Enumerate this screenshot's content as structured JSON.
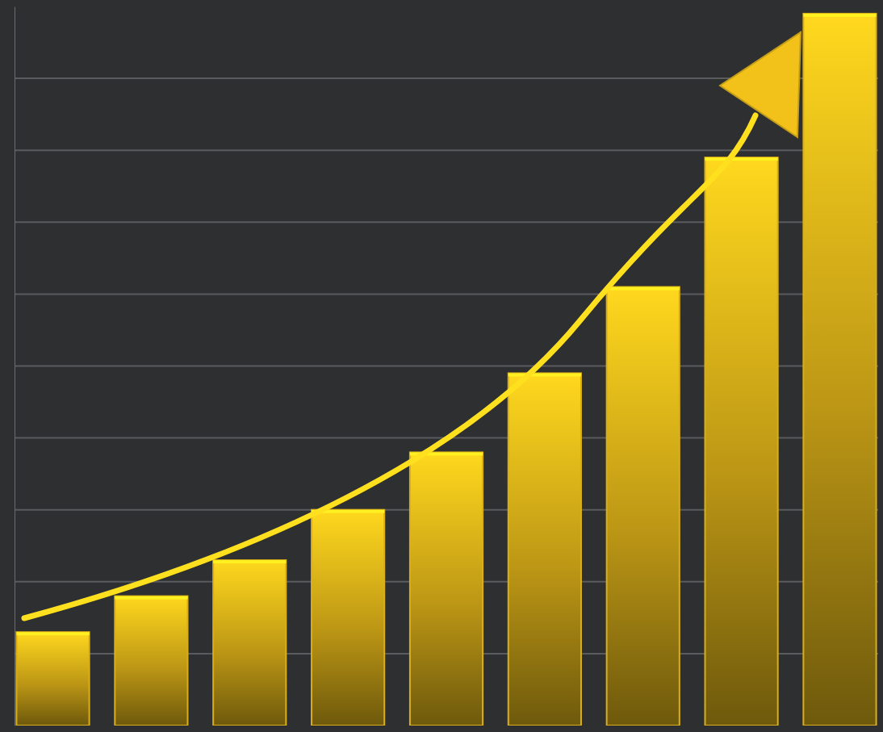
{
  "chart_data": {
    "type": "bar",
    "categories": [
      null,
      null,
      null,
      null,
      null,
      null,
      null,
      null,
      null
    ],
    "values": [
      1.3,
      1.8,
      2.3,
      3.0,
      3.8,
      4.9,
      6.1,
      7.9,
      9.9
    ],
    "color": "#f2c21b",
    "ylim": [
      0,
      10
    ],
    "yticks": [
      1,
      2,
      3,
      4,
      5,
      6,
      7,
      8,
      9
    ],
    "grid": true,
    "tick_labels": false
  }
}
